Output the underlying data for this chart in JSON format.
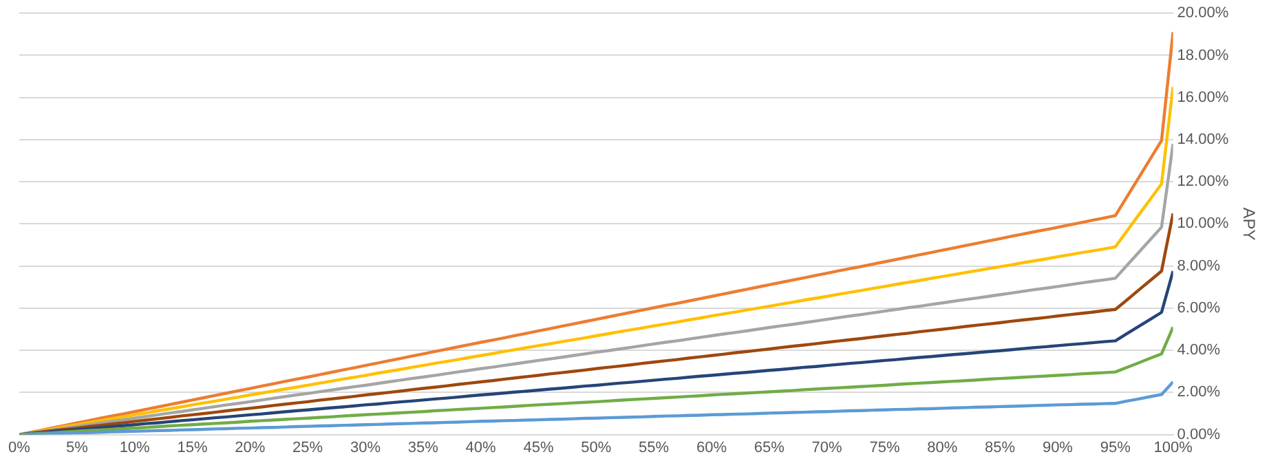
{
  "chart_data": {
    "type": "line",
    "ylabel": "APY",
    "xlim": [
      0,
      100
    ],
    "ylim": [
      0,
      20
    ],
    "x": [
      0,
      1,
      2,
      3,
      4,
      5,
      6,
      7,
      8,
      9,
      10,
      11,
      12,
      13,
      14,
      15,
      16,
      17,
      18,
      19,
      20,
      21,
      22,
      23,
      24,
      25,
      26,
      27,
      28,
      29,
      30,
      31,
      32,
      33,
      34,
      35,
      36,
      37,
      38,
      39,
      40,
      41,
      42,
      43,
      44,
      45,
      46,
      47,
      48,
      49,
      50,
      51,
      52,
      53,
      54,
      55,
      56,
      57,
      58,
      59,
      60,
      61,
      62,
      63,
      64,
      65,
      66,
      67,
      68,
      69,
      70,
      71,
      72,
      73,
      74,
      75,
      76,
      77,
      78,
      79,
      80,
      81,
      82,
      83,
      84,
      85,
      86,
      87,
      88,
      89,
      90,
      91,
      92,
      93,
      94,
      95,
      96,
      97,
      98,
      99,
      100
    ],
    "xticks": [
      {
        "value": 0,
        "label": "0%"
      },
      {
        "value": 5,
        "label": "5%"
      },
      {
        "value": 10,
        "label": "10%"
      },
      {
        "value": 15,
        "label": "15%"
      },
      {
        "value": 20,
        "label": "20%"
      },
      {
        "value": 25,
        "label": "25%"
      },
      {
        "value": 30,
        "label": "30%"
      },
      {
        "value": 35,
        "label": "35%"
      },
      {
        "value": 40,
        "label": "40%"
      },
      {
        "value": 45,
        "label": "45%"
      },
      {
        "value": 50,
        "label": "50%"
      },
      {
        "value": 55,
        "label": "55%"
      },
      {
        "value": 60,
        "label": "60%"
      },
      {
        "value": 65,
        "label": "65%"
      },
      {
        "value": 70,
        "label": "70%"
      },
      {
        "value": 75,
        "label": "75%"
      },
      {
        "value": 80,
        "label": "80%"
      },
      {
        "value": 85,
        "label": "85%"
      },
      {
        "value": 90,
        "label": "90%"
      },
      {
        "value": 95,
        "label": "95%"
      },
      {
        "value": 100,
        "label": "100%"
      }
    ],
    "yticks": [
      {
        "value": 0,
        "label": "0.00%"
      },
      {
        "value": 2,
        "label": "2.00%"
      },
      {
        "value": 4,
        "label": "4.00%"
      },
      {
        "value": 6,
        "label": "6.00%"
      },
      {
        "value": 8,
        "label": "8.00%"
      },
      {
        "value": 10,
        "label": "10.00%"
      },
      {
        "value": 12,
        "label": "12.00%"
      },
      {
        "value": 14,
        "label": "14.00%"
      },
      {
        "value": 16,
        "label": "16.00%"
      },
      {
        "value": 18,
        "label": "18.00%"
      },
      {
        "value": 20,
        "label": "20.00%"
      }
    ],
    "grid": "y",
    "legend": false,
    "marker": "none",
    "line_style": "solid",
    "series": [
      {
        "color": "#5b9bd5",
        "values": [
          0,
          0.02,
          0.03,
          0.05,
          0.06,
          0.08,
          0.09,
          0.11,
          0.13,
          0.14,
          0.16,
          0.17,
          0.19,
          0.2,
          0.22,
          0.23,
          0.25,
          0.27,
          0.28,
          0.3,
          0.31,
          0.33,
          0.34,
          0.36,
          0.38,
          0.39,
          0.41,
          0.42,
          0.44,
          0.45,
          0.47,
          0.48,
          0.5,
          0.52,
          0.53,
          0.55,
          0.56,
          0.58,
          0.59,
          0.61,
          0.63,
          0.64,
          0.66,
          0.67,
          0.69,
          0.7,
          0.72,
          0.73,
          0.75,
          0.77,
          0.78,
          0.8,
          0.81,
          0.83,
          0.84,
          0.86,
          0.88,
          0.89,
          0.91,
          0.92,
          0.94,
          0.95,
          0.97,
          0.98,
          1,
          1.02,
          1.03,
          1.05,
          1.06,
          1.08,
          1.09,
          1.11,
          1.13,
          1.14,
          1.16,
          1.17,
          1.19,
          1.2,
          1.22,
          1.23,
          1.25,
          1.27,
          1.28,
          1.3,
          1.31,
          1.33,
          1.34,
          1.36,
          1.38,
          1.39,
          1.41,
          1.42,
          1.44,
          1.45,
          1.47,
          1.48,
          1.59,
          1.69,
          1.8,
          1.9,
          2.5
        ]
      },
      {
        "color": "#70ad47",
        "values": [
          0,
          0.03,
          0.06,
          0.09,
          0.13,
          0.16,
          0.19,
          0.22,
          0.25,
          0.28,
          0.31,
          0.34,
          0.38,
          0.41,
          0.44,
          0.47,
          0.5,
          0.53,
          0.56,
          0.59,
          0.63,
          0.66,
          0.69,
          0.72,
          0.75,
          0.78,
          0.81,
          0.84,
          0.88,
          0.91,
          0.94,
          0.97,
          1,
          1.03,
          1.06,
          1.09,
          1.13,
          1.16,
          1.19,
          1.22,
          1.25,
          1.28,
          1.31,
          1.34,
          1.38,
          1.41,
          1.44,
          1.47,
          1.5,
          1.53,
          1.56,
          1.59,
          1.63,
          1.66,
          1.69,
          1.72,
          1.75,
          1.78,
          1.81,
          1.84,
          1.88,
          1.91,
          1.94,
          1.97,
          2,
          2.03,
          2.06,
          2.09,
          2.13,
          2.16,
          2.19,
          2.22,
          2.25,
          2.28,
          2.31,
          2.34,
          2.38,
          2.41,
          2.44,
          2.47,
          2.5,
          2.53,
          2.56,
          2.59,
          2.63,
          2.66,
          2.69,
          2.72,
          2.75,
          2.78,
          2.81,
          2.84,
          2.88,
          2.91,
          2.94,
          2.97,
          3.19,
          3.4,
          3.62,
          3.83,
          5.1
        ]
      },
      {
        "color": "#264478",
        "values": [
          0,
          0.05,
          0.09,
          0.14,
          0.19,
          0.23,
          0.28,
          0.33,
          0.38,
          0.42,
          0.47,
          0.52,
          0.56,
          0.61,
          0.66,
          0.7,
          0.75,
          0.8,
          0.84,
          0.89,
          0.94,
          0.98,
          1.03,
          1.08,
          1.13,
          1.17,
          1.22,
          1.27,
          1.31,
          1.36,
          1.41,
          1.45,
          1.5,
          1.55,
          1.59,
          1.64,
          1.69,
          1.73,
          1.78,
          1.83,
          1.88,
          1.92,
          1.97,
          2.02,
          2.06,
          2.11,
          2.16,
          2.2,
          2.25,
          2.3,
          2.34,
          2.39,
          2.44,
          2.48,
          2.53,
          2.58,
          2.63,
          2.67,
          2.72,
          2.77,
          2.81,
          2.86,
          2.91,
          2.95,
          3,
          3.05,
          3.09,
          3.14,
          3.19,
          3.23,
          3.28,
          3.33,
          3.38,
          3.42,
          3.47,
          3.52,
          3.56,
          3.61,
          3.66,
          3.7,
          3.75,
          3.8,
          3.84,
          3.89,
          3.94,
          3.98,
          4.03,
          4.08,
          4.13,
          4.17,
          4.22,
          4.27,
          4.31,
          4.36,
          4.41,
          4.45,
          4.79,
          5.13,
          5.46,
          5.8,
          7.76
        ]
      },
      {
        "color": "#9e480e",
        "values": [
          0,
          0.06,
          0.13,
          0.19,
          0.25,
          0.31,
          0.38,
          0.44,
          0.5,
          0.56,
          0.63,
          0.69,
          0.75,
          0.81,
          0.88,
          0.94,
          1,
          1.06,
          1.13,
          1.19,
          1.25,
          1.31,
          1.38,
          1.44,
          1.5,
          1.56,
          1.63,
          1.69,
          1.75,
          1.81,
          1.88,
          1.94,
          2,
          2.06,
          2.13,
          2.19,
          2.25,
          2.31,
          2.38,
          2.44,
          2.5,
          2.56,
          2.63,
          2.69,
          2.75,
          2.81,
          2.88,
          2.94,
          3,
          3.06,
          3.13,
          3.19,
          3.25,
          3.31,
          3.38,
          3.44,
          3.5,
          3.56,
          3.63,
          3.69,
          3.75,
          3.81,
          3.88,
          3.94,
          4,
          4.06,
          4.13,
          4.19,
          4.25,
          4.31,
          4.38,
          4.44,
          4.5,
          4.56,
          4.63,
          4.69,
          4.75,
          4.81,
          4.88,
          4.94,
          5,
          5.06,
          5.13,
          5.19,
          5.25,
          5.31,
          5.38,
          5.44,
          5.5,
          5.56,
          5.63,
          5.69,
          5.75,
          5.81,
          5.88,
          5.94,
          6.39,
          6.85,
          7.3,
          7.76,
          10.5
        ]
      },
      {
        "color": "#a5a5a5",
        "values": [
          0,
          0.08,
          0.16,
          0.23,
          0.31,
          0.39,
          0.47,
          0.55,
          0.63,
          0.7,
          0.78,
          0.86,
          0.94,
          1.02,
          1.09,
          1.17,
          1.25,
          1.33,
          1.41,
          1.48,
          1.56,
          1.64,
          1.72,
          1.8,
          1.88,
          1.95,
          2.03,
          2.11,
          2.19,
          2.27,
          2.34,
          2.42,
          2.5,
          2.58,
          2.66,
          2.73,
          2.81,
          2.89,
          2.97,
          3.05,
          3.13,
          3.2,
          3.28,
          3.36,
          3.44,
          3.52,
          3.59,
          3.67,
          3.75,
          3.83,
          3.91,
          3.98,
          4.06,
          4.14,
          4.22,
          4.3,
          4.38,
          4.45,
          4.53,
          4.61,
          4.69,
          4.77,
          4.84,
          4.92,
          5,
          5.08,
          5.16,
          5.23,
          5.31,
          5.39,
          5.47,
          5.55,
          5.63,
          5.7,
          5.78,
          5.86,
          5.94,
          6.02,
          6.09,
          6.17,
          6.25,
          6.33,
          6.41,
          6.48,
          6.56,
          6.64,
          6.72,
          6.8,
          6.88,
          6.95,
          7.03,
          7.11,
          7.19,
          7.27,
          7.34,
          7.42,
          8.03,
          8.63,
          9.24,
          9.84,
          13.8
        ]
      },
      {
        "color": "#ffc000",
        "values": [
          0,
          0.09,
          0.19,
          0.28,
          0.38,
          0.47,
          0.56,
          0.66,
          0.75,
          0.84,
          0.94,
          1.03,
          1.13,
          1.22,
          1.31,
          1.41,
          1.5,
          1.59,
          1.69,
          1.78,
          1.88,
          1.97,
          2.06,
          2.16,
          2.25,
          2.34,
          2.44,
          2.53,
          2.63,
          2.72,
          2.81,
          2.91,
          3,
          3.09,
          3.19,
          3.28,
          3.38,
          3.47,
          3.56,
          3.66,
          3.75,
          3.84,
          3.94,
          4.03,
          4.13,
          4.22,
          4.31,
          4.41,
          4.5,
          4.59,
          4.69,
          4.78,
          4.88,
          4.97,
          5.06,
          5.16,
          5.25,
          5.34,
          5.44,
          5.53,
          5.63,
          5.72,
          5.81,
          5.91,
          6,
          6.09,
          6.19,
          6.28,
          6.38,
          6.47,
          6.56,
          6.66,
          6.75,
          6.84,
          6.94,
          7.03,
          7.13,
          7.22,
          7.31,
          7.41,
          7.5,
          7.59,
          7.69,
          7.78,
          7.88,
          7.97,
          8.06,
          8.16,
          8.25,
          8.34,
          8.44,
          8.53,
          8.63,
          8.72,
          8.81,
          8.91,
          9.66,
          10.41,
          11.15,
          11.9,
          16.5
        ]
      },
      {
        "color": "#ed7d31",
        "values": [
          0,
          0.11,
          0.22,
          0.33,
          0.44,
          0.55,
          0.66,
          0.77,
          0.88,
          0.98,
          1.09,
          1.2,
          1.31,
          1.42,
          1.53,
          1.64,
          1.75,
          1.86,
          1.97,
          2.08,
          2.19,
          2.3,
          2.41,
          2.52,
          2.63,
          2.73,
          2.84,
          2.95,
          3.06,
          3.17,
          3.28,
          3.39,
          3.5,
          3.61,
          3.72,
          3.83,
          3.94,
          4.05,
          4.16,
          4.27,
          4.38,
          4.48,
          4.59,
          4.7,
          4.81,
          4.92,
          5.03,
          5.14,
          5.25,
          5.36,
          5.47,
          5.58,
          5.69,
          5.8,
          5.91,
          6.02,
          6.13,
          6.23,
          6.34,
          6.45,
          6.56,
          6.67,
          6.78,
          6.89,
          7,
          7.11,
          7.22,
          7.33,
          7.44,
          7.55,
          7.66,
          7.77,
          7.88,
          7.98,
          8.09,
          8.2,
          8.31,
          8.42,
          8.53,
          8.64,
          8.75,
          8.86,
          8.97,
          9.08,
          9.19,
          9.3,
          9.41,
          9.52,
          9.63,
          9.73,
          9.84,
          9.95,
          10.06,
          10.17,
          10.28,
          10.39,
          11.28,
          12.17,
          13.06,
          13.95,
          19.1
        ]
      }
    ]
  }
}
